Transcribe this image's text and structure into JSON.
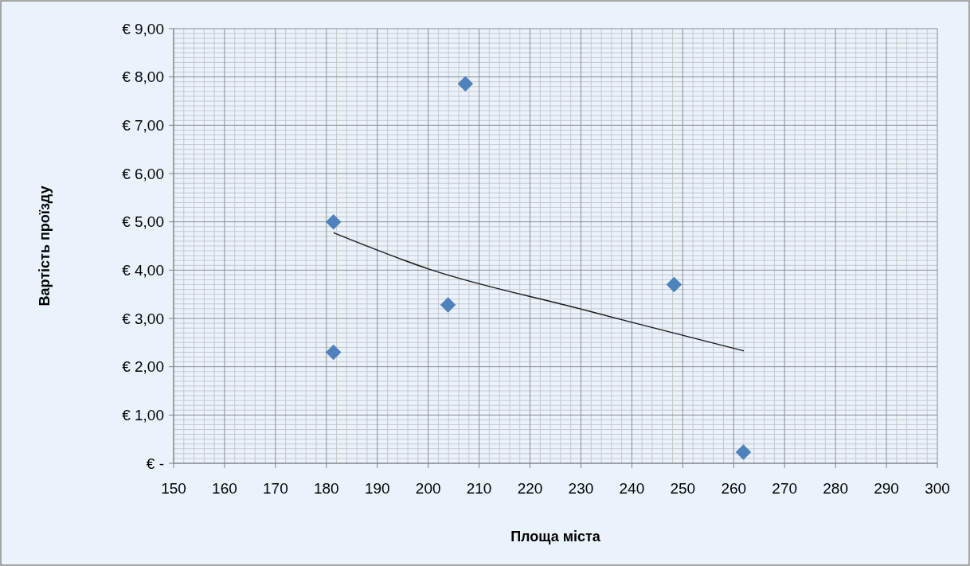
{
  "chart_data": {
    "type": "scatter",
    "xlabel": "Площа міста",
    "ylabel": "Вартість проїзду",
    "xlim": [
      150,
      300
    ],
    "xticks": [
      150,
      160,
      170,
      180,
      190,
      200,
      210,
      220,
      230,
      240,
      250,
      260,
      270,
      280,
      290,
      300
    ],
    "ylim": [
      0,
      9
    ],
    "yticks": [
      {
        "value": 0,
        "label": "€ -"
      },
      {
        "value": 1,
        "label": "€ 1,00"
      },
      {
        "value": 2,
        "label": "€ 2,00"
      },
      {
        "value": 3,
        "label": "€ 3,00"
      },
      {
        "value": 4,
        "label": "€ 4,00"
      },
      {
        "value": 5,
        "label": "€ 5,00"
      },
      {
        "value": 6,
        "label": "€ 6,00"
      },
      {
        "value": 7,
        "label": "€ 7,00"
      },
      {
        "value": 8,
        "label": "€ 8,00"
      },
      {
        "value": 9,
        "label": "€ 9,00"
      }
    ],
    "grid": true,
    "marker": "diamond",
    "series": [
      {
        "color": "#4f81bd",
        "x": [
          181.4,
          181.4,
          203.9,
          207.3,
          248.3,
          261.9
        ],
        "values": [
          5.0,
          2.3,
          3.28,
          7.86,
          3.7,
          0.23
        ]
      },
      {
        "type": "line",
        "color": "#1a1a1a",
        "marker": "none",
        "x": [
          181.5,
          200.2,
          229.8,
          240,
          261.9
        ],
        "values": [
          4.77,
          4.02,
          3.2,
          2.92,
          2.33
        ]
      }
    ]
  }
}
